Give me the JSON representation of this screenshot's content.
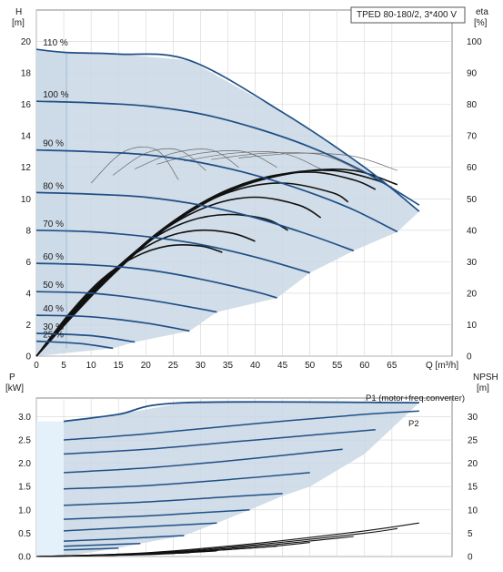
{
  "chart_data": [
    {
      "type": "line",
      "title": "TPED 80-180/2, 3*400 V",
      "ylabel_left": "H",
      "ylabel_left_unit": "[m]",
      "ylabel_right": "eta",
      "ylabel_right_unit": "[%]",
      "xlabel": "Q [m³/h]",
      "xlim": [
        0,
        76
      ],
      "ylim": [
        0,
        22
      ],
      "ylim_right": [
        0,
        110
      ],
      "x_ticks": [
        0,
        5,
        10,
        15,
        20,
        25,
        30,
        35,
        40,
        45,
        50,
        55,
        60,
        65
      ],
      "y_ticks": [
        0,
        2,
        4,
        6,
        8,
        10,
        12,
        14,
        16,
        18,
        20
      ],
      "y_ticks_right": [
        0,
        10,
        20,
        30,
        40,
        50,
        60,
        70,
        80,
        90,
        100
      ],
      "grid": true,
      "series": [
        {
          "name": "110 %",
          "x": [
            0,
            5.5,
            15,
            28,
            45,
            60,
            70
          ],
          "y": [
            19.5,
            19.3,
            19.2,
            18.8,
            15.5,
            12,
            9.2
          ]
        },
        {
          "name": "100 %",
          "x": [
            0,
            10,
            20,
            30,
            40,
            50,
            60,
            70
          ],
          "y": [
            16.2,
            16.1,
            15.9,
            15.4,
            14.5,
            13.3,
            11.7,
            9.6
          ]
        },
        {
          "name": "90 %",
          "x": [
            0,
            10,
            20,
            30,
            40,
            50,
            58,
            66
          ],
          "y": [
            13.1,
            13.0,
            12.8,
            12.3,
            11.5,
            10.4,
            9.3,
            7.9
          ]
        },
        {
          "name": "80 %",
          "x": [
            0,
            10,
            20,
            30,
            40,
            50,
            58
          ],
          "y": [
            10.4,
            10.3,
            10.1,
            9.6,
            8.8,
            7.7,
            6.7
          ]
        },
        {
          "name": "70 %",
          "x": [
            0,
            10,
            20,
            30,
            40,
            50
          ],
          "y": [
            8.0,
            7.9,
            7.6,
            7.1,
            6.3,
            5.3
          ]
        },
        {
          "name": "60 %",
          "x": [
            0,
            10,
            20,
            30,
            40,
            44
          ],
          "y": [
            5.9,
            5.8,
            5.5,
            4.9,
            4.1,
            3.7
          ]
        },
        {
          "name": "50 %",
          "x": [
            0,
            10,
            20,
            30,
            33
          ],
          "y": [
            4.1,
            4.0,
            3.6,
            3.0,
            2.8
          ]
        },
        {
          "name": "40 %",
          "x": [
            0,
            10,
            20,
            28
          ],
          "y": [
            2.6,
            2.5,
            2.1,
            1.6
          ]
        },
        {
          "name": "30 %",
          "x": [
            0,
            10,
            18
          ],
          "y": [
            1.45,
            1.3,
            0.9
          ]
        },
        {
          "name": "25 %",
          "x": [
            0,
            8,
            14
          ],
          "y": [
            0.95,
            0.8,
            0.5
          ]
        }
      ],
      "envelope": {
        "x": [
          0,
          5.5,
          15,
          28,
          45,
          60,
          70,
          66,
          58,
          50,
          44,
          33,
          28,
          18,
          14,
          0
        ],
        "y": [
          19.5,
          19.3,
          19.2,
          18.8,
          15.5,
          12,
          9.2,
          7.9,
          6.7,
          5.3,
          3.7,
          2.8,
          1.6,
          0.9,
          0.5,
          0
        ]
      }
    },
    {
      "type": "line",
      "ylabel_left": "P",
      "ylabel_left_unit": "[kW]",
      "ylabel_right": "NPSH",
      "ylabel_right_unit": "[m]",
      "xlim": [
        0,
        76
      ],
      "ylim": [
        0,
        3.4
      ],
      "ylim_right": [
        0,
        34
      ],
      "y_ticks": [
        0.0,
        0.5,
        1.0,
        1.5,
        2.0,
        2.5,
        3.0
      ],
      "y_ticks_right": [
        0,
        5,
        10,
        15,
        20,
        25,
        30
      ],
      "grid": true,
      "annotations": [
        "P1 (motor+freq.converter)",
        "P2"
      ],
      "series": [
        {
          "name": "P1 (motor+freq.converter)",
          "x": [
            5,
            15,
            27,
            70
          ],
          "y": [
            2.9,
            3.05,
            3.3,
            3.3
          ]
        },
        {
          "name": "P2",
          "x": [
            5,
            20,
            40,
            60,
            70
          ],
          "y": [
            2.5,
            2.63,
            2.85,
            3.05,
            3.12
          ]
        }
      ],
      "power_curves": [
        {
          "x": [
            5,
            20,
            40,
            60,
            70
          ],
          "y": [
            2.5,
            2.63,
            2.85,
            3.05,
            3.12
          ]
        },
        {
          "x": [
            5,
            20,
            35,
            50,
            62
          ],
          "y": [
            2.2,
            2.3,
            2.45,
            2.6,
            2.72
          ]
        },
        {
          "x": [
            5,
            20,
            35,
            50,
            56
          ],
          "y": [
            1.8,
            1.9,
            2.05,
            2.23,
            2.3
          ]
        },
        {
          "x": [
            5,
            20,
            35,
            50
          ],
          "y": [
            1.45,
            1.52,
            1.65,
            1.8
          ]
        },
        {
          "x": [
            5,
            20,
            35,
            45
          ],
          "y": [
            1.1,
            1.17,
            1.28,
            1.35
          ]
        },
        {
          "x": [
            5,
            20,
            30,
            39
          ],
          "y": [
            0.8,
            0.87,
            0.94,
            1.0
          ]
        },
        {
          "x": [
            5,
            15,
            25,
            33
          ],
          "y": [
            0.55,
            0.61,
            0.67,
            0.72
          ]
        },
        {
          "x": [
            5,
            15,
            22,
            27
          ],
          "y": [
            0.33,
            0.38,
            0.42,
            0.45
          ]
        },
        {
          "x": [
            5,
            12,
            19
          ],
          "y": [
            0.22,
            0.25,
            0.28
          ]
        },
        {
          "x": [
            5,
            10,
            15
          ],
          "y": [
            0.14,
            0.16,
            0.18
          ]
        }
      ],
      "npsh_curves": [
        {
          "x": [
            0,
            20,
            40,
            60,
            70
          ],
          "y": [
            0.0,
            0.08,
            0.28,
            0.55,
            0.72
          ]
        },
        {
          "x": [
            0,
            20,
            40,
            60,
            66
          ],
          "y": [
            0.0,
            0.07,
            0.25,
            0.5,
            0.6
          ]
        },
        {
          "x": [
            0,
            20,
            40,
            58
          ],
          "y": [
            0.0,
            0.06,
            0.22,
            0.43
          ]
        },
        {
          "x": [
            0,
            20,
            40,
            50
          ],
          "y": [
            0.0,
            0.05,
            0.19,
            0.3
          ]
        },
        {
          "x": [
            0,
            20,
            34,
            44
          ],
          "y": [
            0.0,
            0.05,
            0.14,
            0.22
          ]
        },
        {
          "x": [
            0,
            20,
            33
          ],
          "y": [
            0.0,
            0.04,
            0.12
          ]
        },
        {
          "x": [
            0,
            15,
            28
          ],
          "y": [
            0.0,
            0.03,
            0.08
          ]
        },
        {
          "x": [
            0,
            10,
            18
          ],
          "y": [
            0.0,
            0.02,
            0.04
          ]
        }
      ],
      "envelope": {
        "x": [
          5,
          15,
          27,
          70,
          60,
          50,
          45,
          39,
          33,
          27,
          19,
          15,
          5
        ],
        "y": [
          2.9,
          3.05,
          3.3,
          3.3,
          2.2,
          1.5,
          1.3,
          1.0,
          0.72,
          0.45,
          0.28,
          0.18,
          0.0
        ]
      }
    }
  ],
  "colors": {
    "curve": "#1f4f86",
    "envelope_fill": "#c9d7e4",
    "left_fill": "#e4f1fa",
    "grid": "#d4d4d4",
    "eff_thin": "#666666",
    "eff_bold": "#111111"
  },
  "efficiency_curves": [
    {
      "x": [
        0,
        6,
        12,
        18,
        24,
        30,
        34
      ],
      "y": [
        0,
        2.7,
        4.9,
        6.3,
        7.0,
        7.0,
        6.6
      ]
    },
    {
      "x": [
        0,
        6,
        12,
        18,
        24,
        30,
        36,
        40
      ],
      "y": [
        0,
        2.6,
        4.8,
        6.5,
        7.6,
        8.0,
        7.8,
        7.3
      ]
    },
    {
      "x": [
        0,
        7,
        14,
        21,
        28,
        35,
        42,
        46
      ],
      "y": [
        0,
        2.9,
        5.4,
        7.4,
        8.6,
        9.0,
        8.7,
        8.0
      ]
    },
    {
      "x": [
        0,
        8,
        16,
        24,
        32,
        40,
        48,
        52
      ],
      "y": [
        0,
        3.2,
        6.0,
        8.2,
        9.6,
        10.1,
        9.6,
        8.8
      ]
    },
    {
      "x": [
        0,
        9,
        18,
        27,
        36,
        45,
        54,
        57
      ],
      "y": [
        0,
        3.5,
        6.6,
        9.0,
        10.5,
        11.0,
        10.4,
        9.8
      ]
    },
    {
      "x": [
        0,
        10,
        20,
        30,
        40,
        50,
        58,
        62
      ],
      "y": [
        0,
        3.9,
        7.2,
        9.7,
        11.2,
        11.7,
        11.2,
        10.6
      ]
    },
    {
      "x": [
        0,
        11,
        22,
        33,
        44,
        54,
        62,
        65
      ],
      "y": [
        0,
        4.2,
        7.8,
        10.2,
        11.5,
        11.8,
        11.2,
        10.7
      ]
    },
    {
      "x": [
        0,
        12,
        24,
        36,
        48,
        58,
        66
      ],
      "y": [
        0,
        4.5,
        8.2,
        10.6,
        11.7,
        11.8,
        10.9
      ]
    }
  ],
  "efficiency_curves_thin": [
    {
      "x": [
        10,
        16,
        22,
        26
      ],
      "y": [
        11.0,
        13.0,
        13.1,
        11.2
      ]
    },
    {
      "x": [
        14,
        20,
        26,
        31
      ],
      "y": [
        11.5,
        12.9,
        13.1,
        11.8
      ]
    },
    {
      "x": [
        18,
        25,
        32,
        37
      ],
      "y": [
        11.9,
        12.9,
        13.1,
        12.0
      ]
    },
    {
      "x": [
        22,
        30,
        38,
        44
      ],
      "y": [
        12.2,
        12.9,
        13.0,
        12.0
      ]
    },
    {
      "x": [
        27,
        36,
        45,
        52
      ],
      "y": [
        12.4,
        12.9,
        12.9,
        11.9
      ]
    },
    {
      "x": [
        32,
        42,
        52,
        59
      ],
      "y": [
        12.5,
        12.9,
        12.8,
        11.8
      ]
    },
    {
      "x": [
        37,
        48,
        58,
        66
      ],
      "y": [
        12.6,
        12.9,
        12.7,
        11.8
      ]
    }
  ]
}
